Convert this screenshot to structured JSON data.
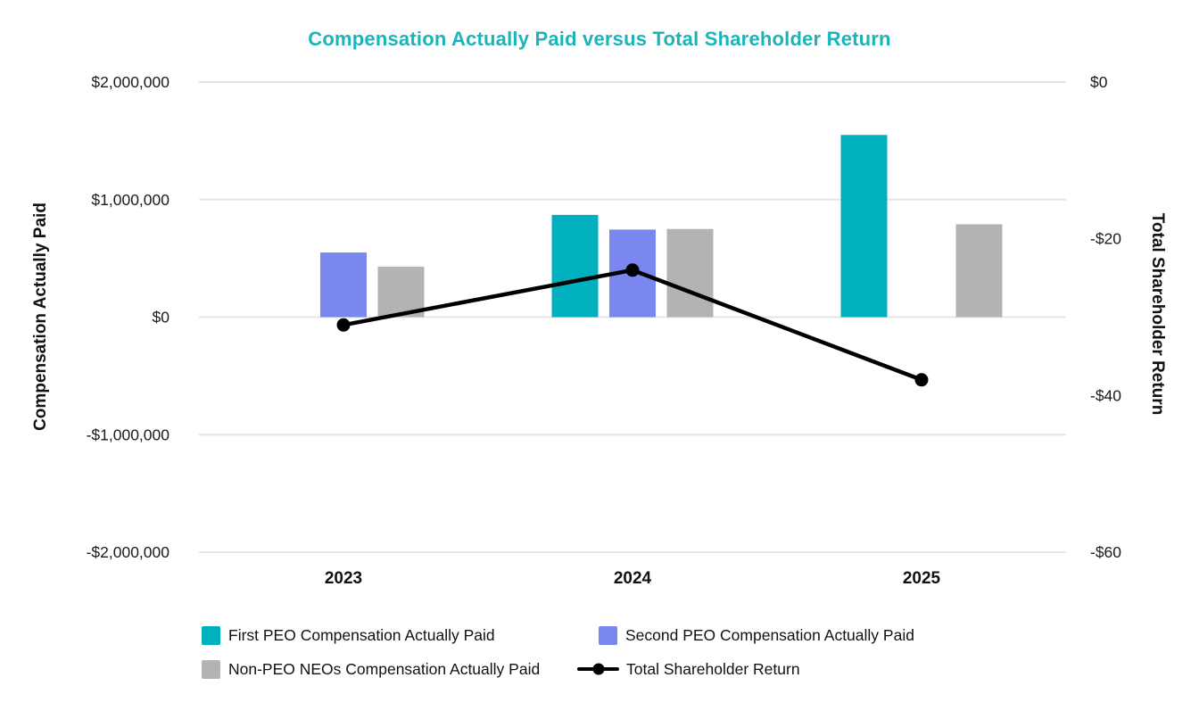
{
  "chart_data": {
    "type": "bar",
    "title": "Compensation Actually Paid versus Total Shareholder Return",
    "title_color": "#1BB4BB",
    "categories": [
      "2023",
      "2024",
      "2025"
    ],
    "series": [
      {
        "name": "First PEO Compensation Actually Paid",
        "type": "bar",
        "color": "#00B0BE",
        "axis": "left",
        "values": [
          null,
          870000,
          1550000
        ]
      },
      {
        "name": "Second PEO Compensation Actually Paid",
        "type": "bar",
        "color": "#7A87EF",
        "axis": "left",
        "values": [
          550000,
          745000,
          null
        ]
      },
      {
        "name": "Non-PEO NEOs Compensation Actually Paid",
        "type": "bar",
        "color": "#B3B3B3",
        "axis": "left",
        "values": [
          430000,
          750000,
          790000
        ]
      },
      {
        "name": "Total Shareholder Return",
        "type": "line",
        "color": "#000000",
        "axis": "right",
        "values": [
          -31,
          -24,
          -38
        ]
      }
    ],
    "left_axis": {
      "label": "Compensation Actually Paid",
      "ticks": [
        "$2,000,000",
        "$1,000,000",
        "$0",
        "-$1,000,000",
        "-$2,000,000"
      ],
      "tick_values": [
        2000000,
        1000000,
        0,
        -1000000,
        -2000000
      ],
      "ylim": [
        -2000000,
        2000000
      ]
    },
    "right_axis": {
      "label": "Total Shareholder Return",
      "ticks": [
        "$0",
        "-$20",
        "-$40",
        "-$60"
      ],
      "tick_values": [
        0,
        -20,
        -40,
        -60
      ],
      "ylim": [
        -60,
        0
      ]
    },
    "grid": true,
    "legend_position": "bottom",
    "gridline_color": "#E5E5E5",
    "tick_text_color": "#1B1B1B"
  }
}
